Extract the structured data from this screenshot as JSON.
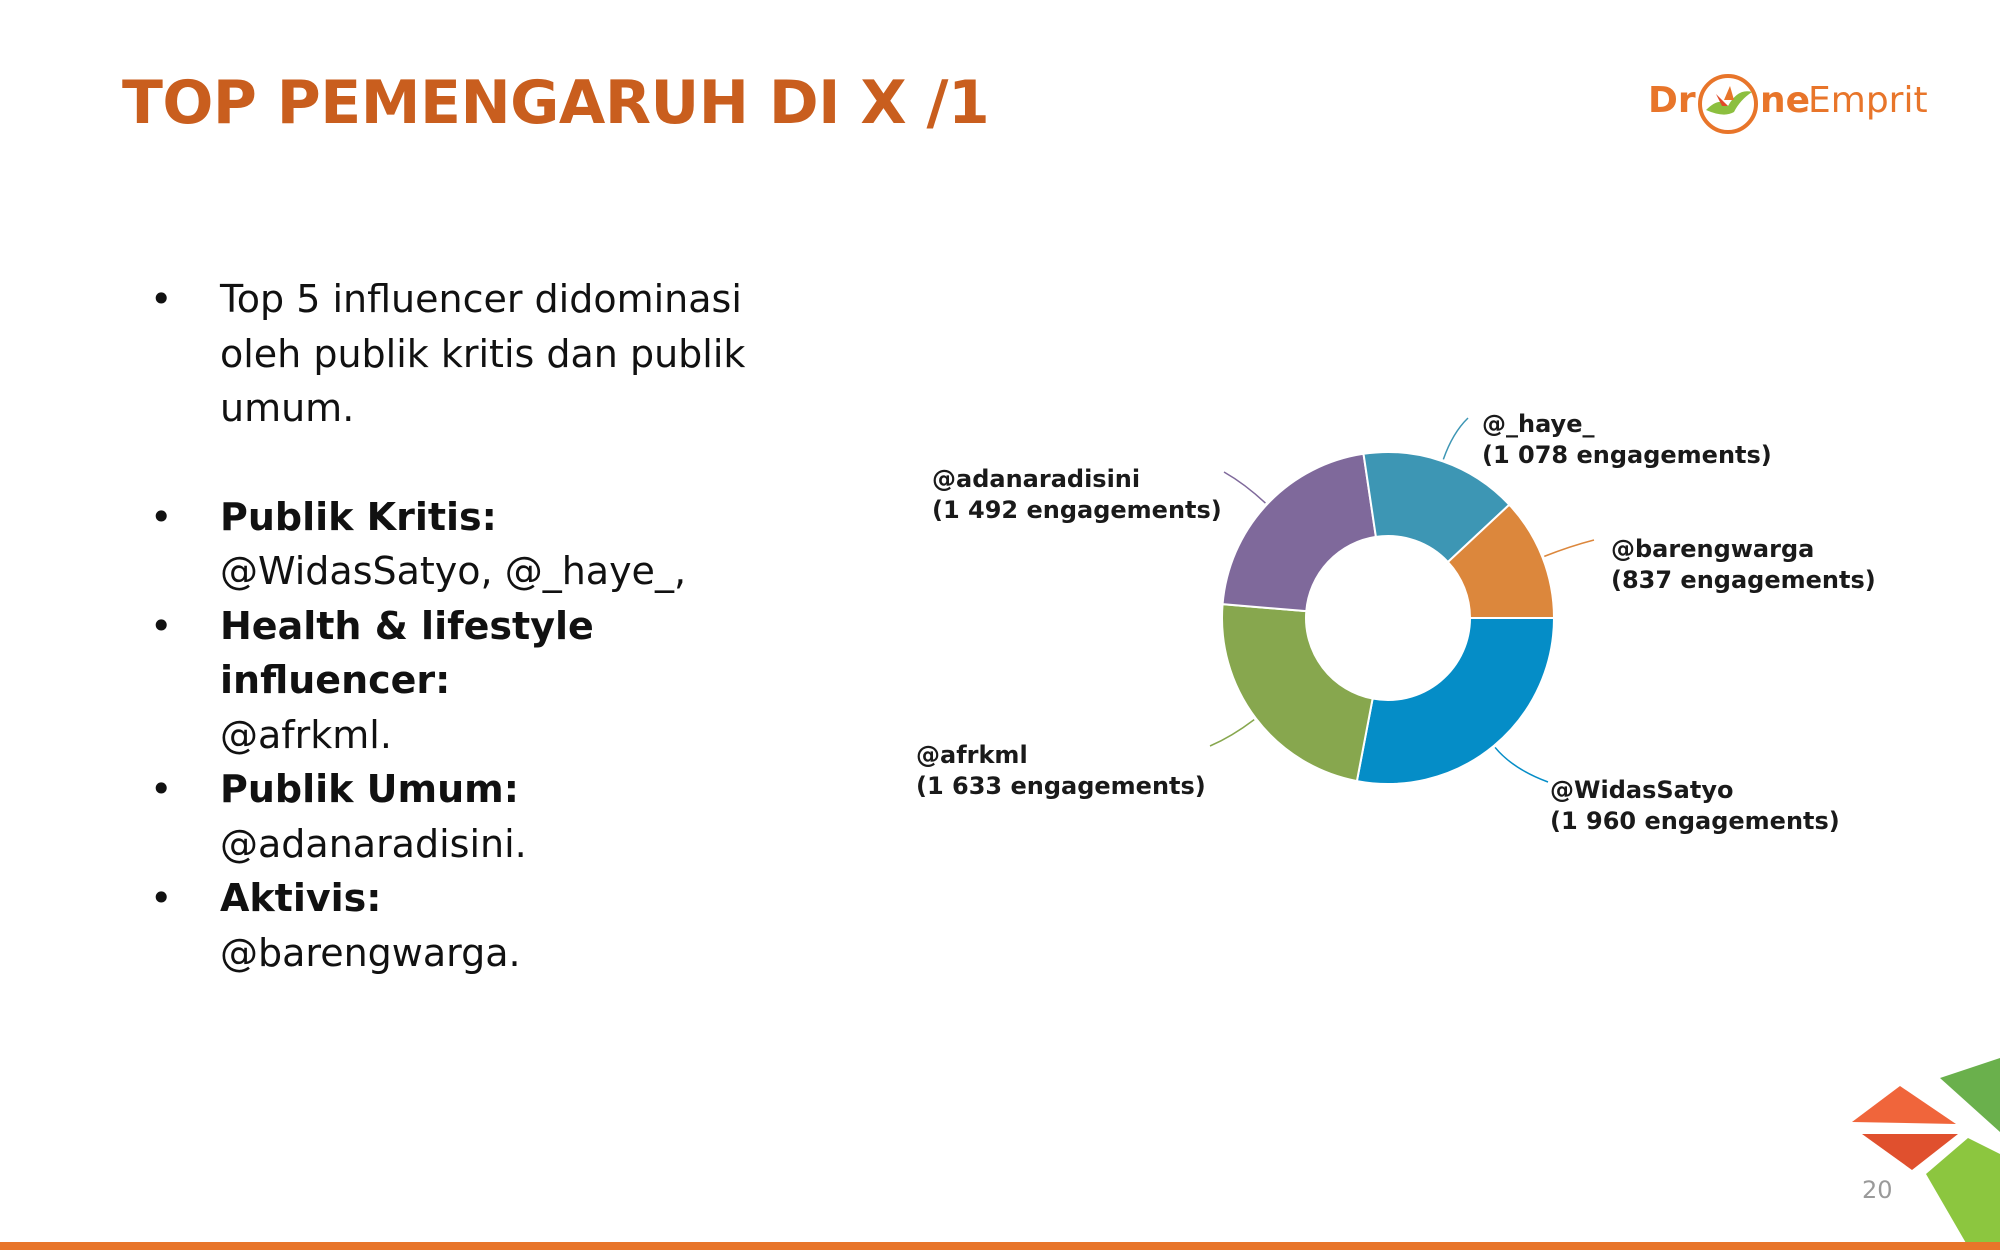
{
  "slide": {
    "title": "TOP PEMENGARUH DI X /1",
    "page_number": "20"
  },
  "logo": {
    "text_part1": "Dr",
    "text_part2": "ne",
    "text_part3": "Emprit"
  },
  "bullets": {
    "intro": "Top 5 influencer didominasi oleh publik kritis dan publik umum.",
    "items": [
      {
        "label": "Publik Kritis:",
        "value": "@WidasSatyo, @_haye_,"
      },
      {
        "label": "Health & lifestyle influencer:",
        "value": "@afrkml."
      },
      {
        "label": "Publik Umum:",
        "value": "@adanaradisini."
      },
      {
        "label": "Aktivis:",
        "value": "@barengwarga."
      }
    ]
  },
  "colors": {
    "title": "#c95e1e",
    "accent": "#e8752a"
  },
  "chart_data": {
    "type": "pie",
    "donut": true,
    "start_direction": "east",
    "rotation": "clockwise",
    "slices": [
      {
        "name": "@WidasSatyo",
        "value": 1960,
        "label_line1": "@WidasSatyo",
        "label_line2": "(1 960 engagements)",
        "color": "#058dc7"
      },
      {
        "name": "@afrkml",
        "value": 1633,
        "label_line1": "@afrkml",
        "label_line2": "(1 633 engagements)",
        "color": "#87a74e"
      },
      {
        "name": "@adanaradisini",
        "value": 1492,
        "label_line1": "@adanaradisini",
        "label_line2": "(1 492 engagements)",
        "color": "#7f699b"
      },
      {
        "name": "@_haye_",
        "value": 1078,
        "label_line1": "@_haye_",
        "label_line2": "(1 078 engagements)",
        "color": "#3d96b4"
      },
      {
        "name": "@barengwarga",
        "value": 837,
        "label_line1": "@barengwarga",
        "label_line2": "(837 engagements)",
        "color": "#dc873c"
      }
    ]
  }
}
